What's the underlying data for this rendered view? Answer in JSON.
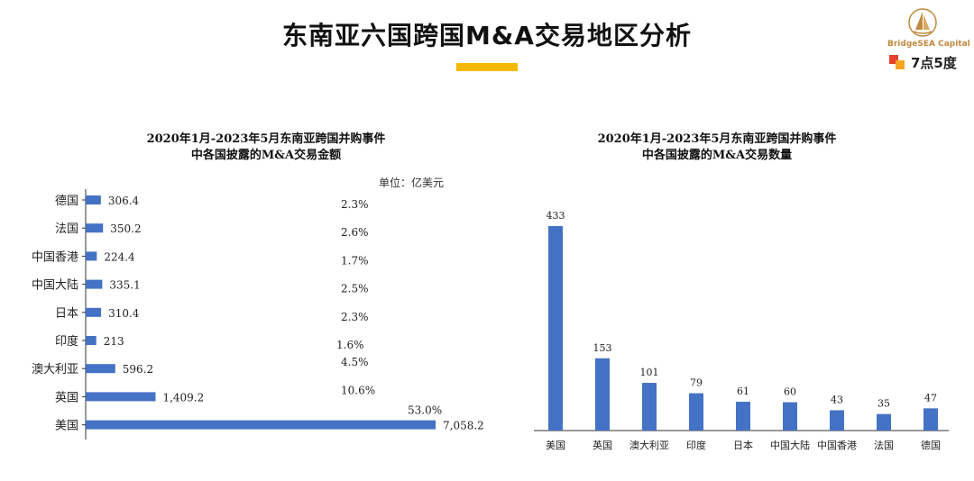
{
  "header": {
    "title": "东南亚六国跨国M&A交易地区分析",
    "logo_text": "BridgeSEA Capital",
    "brand2_text": "7点5度",
    "accent_color": "#f5b800"
  },
  "chart_data": [
    {
      "type": "bar",
      "orientation": "horizontal",
      "title_line1": "2020年1月-2023年5月东南亚跨国并购事件",
      "title_line2": "中各国披露的M&A交易金额",
      "unit_label": "单位：亿美元",
      "categories": [
        "德国",
        "法国",
        "中国香港",
        "中国大陆",
        "日本",
        "印度",
        "澳大利亚",
        "英国",
        "美国"
      ],
      "values": [
        306.4,
        350.2,
        224.4,
        335.1,
        310.4,
        213,
        596.2,
        1409.2,
        7058.2
      ],
      "value_labels": [
        "306.4",
        "350.2",
        "224.4",
        "335.1",
        "310.4",
        "213",
        "596.2",
        "1,409.2",
        "7,058.2"
      ],
      "percent_labels": [
        "2.3%",
        "2.6%",
        "1.7%",
        "2.5%",
        "2.3%",
        "1.6%",
        "4.5%",
        "10.6%",
        "53.0%"
      ],
      "xlim": [
        0,
        7058.2
      ],
      "bar_color": "#4472c4"
    },
    {
      "type": "bar",
      "orientation": "vertical",
      "title_line1": "2020年1月-2023年5月东南亚跨国并购事件",
      "title_line2": "中各国披露的M&A交易数量",
      "categories": [
        "美国",
        "英国",
        "澳大利亚",
        "印度",
        "日本",
        "中国大陆",
        "中国香港",
        "法国",
        "德国"
      ],
      "values": [
        433,
        153,
        101,
        79,
        61,
        60,
        43,
        35,
        47
      ],
      "ylim": [
        0,
        433
      ],
      "bar_color": "#4472c4"
    }
  ]
}
